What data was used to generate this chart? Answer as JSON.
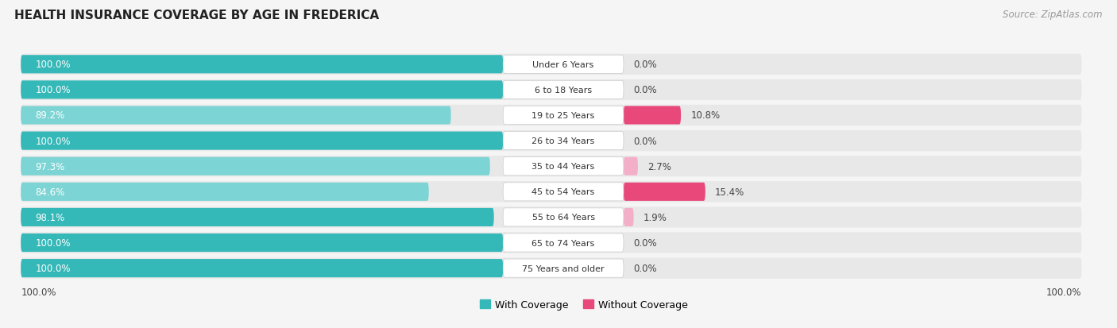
{
  "title": "HEALTH INSURANCE COVERAGE BY AGE IN FREDERICA",
  "source": "Source: ZipAtlas.com",
  "categories": [
    "Under 6 Years",
    "6 to 18 Years",
    "19 to 25 Years",
    "26 to 34 Years",
    "35 to 44 Years",
    "45 to 54 Years",
    "55 to 64 Years",
    "65 to 74 Years",
    "75 Years and older"
  ],
  "with_coverage": [
    100.0,
    100.0,
    89.2,
    100.0,
    97.3,
    84.6,
    98.1,
    100.0,
    100.0
  ],
  "without_coverage": [
    0.0,
    0.0,
    10.8,
    0.0,
    2.7,
    15.4,
    1.9,
    0.0,
    0.0
  ],
  "color_with": "#35b8b8",
  "color_with_light": "#7dd4d4",
  "color_without_low": "#f4afc8",
  "color_without_high": "#e8487a",
  "row_bg_color": "#e8e8e8",
  "fig_bg_color": "#f5f5f5",
  "title_color": "#222222",
  "source_color": "#999999",
  "label_white": "#ffffff",
  "label_dark": "#444444",
  "legend_with": "#35b8b8",
  "legend_without": "#e8487a"
}
